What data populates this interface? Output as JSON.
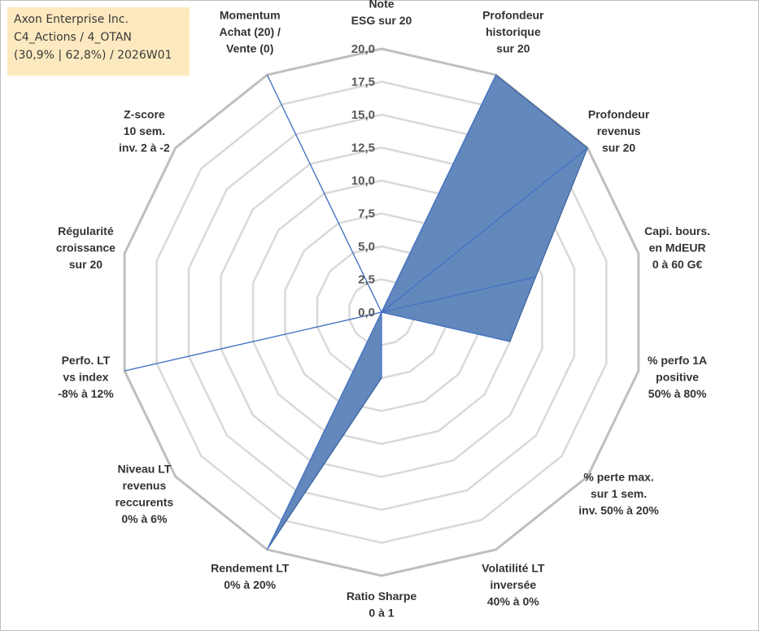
{
  "info_box": {
    "line1": "Axon Enterprise Inc.",
    "line2": "C4_Actions / 4_OTAN",
    "line3": "(30,9% | 62,8%) / 2026W01"
  },
  "chart_data": {
    "type": "radar",
    "title": "",
    "rlim": [
      0,
      20
    ],
    "ticks": [
      "0,0",
      "2,5",
      "5,0",
      "7,5",
      "10,0",
      "12,5",
      "15,0",
      "17,5",
      "20,0"
    ],
    "grid": true,
    "categories": [
      [
        "Note",
        "ESG sur 20"
      ],
      [
        "Profondeur",
        "historique",
        "sur 20"
      ],
      [
        "Profondeur",
        "revenus",
        "sur 20"
      ],
      [
        "Capi. bours.",
        "en MdEUR",
        "0 à 60 G€"
      ],
      [
        "% perfo 1A",
        "positive",
        "50% à 80%"
      ],
      [
        "% perte max.",
        "sur 1 sem.",
        "inv. 50% à 20%"
      ],
      [
        "Volatilité LT",
        "inversée",
        "40% à 0%"
      ],
      [
        "Ratio Sharpe",
        "0 à 1"
      ],
      [
        "Rendement LT",
        "0% à 20%"
      ],
      [
        "Niveau LT",
        "revenus",
        "reccurents",
        "0% à 6%"
      ],
      [
        "Perfo. LT",
        "vs index",
        "-8% à 12%"
      ],
      [
        "Régularité",
        "croissance",
        "sur 20"
      ],
      [
        "Z-score",
        "10 sem.",
        "inv. 2 à -2"
      ],
      [
        "Momentum",
        "Achat (20) /",
        "Vente (0)"
      ]
    ],
    "series": [
      {
        "values": [
          0,
          20,
          20,
          12,
          10,
          0,
          0,
          5,
          20,
          0,
          20,
          0,
          0,
          20
        ],
        "fill": "#5a82b8",
        "stroke": "#2f5597"
      },
      {
        "values": [
          0,
          0,
          0,
          0,
          0,
          0,
          0,
          0,
          0,
          0,
          0,
          0,
          0,
          0
        ],
        "fill": "#5a82b8",
        "stroke": "#2f5597"
      }
    ],
    "colors": {
      "grid": "#d9d9d9",
      "outer_grid": "#bfbfbf",
      "series_line": "#4472c4",
      "area_fill": "#5a82b8"
    }
  }
}
